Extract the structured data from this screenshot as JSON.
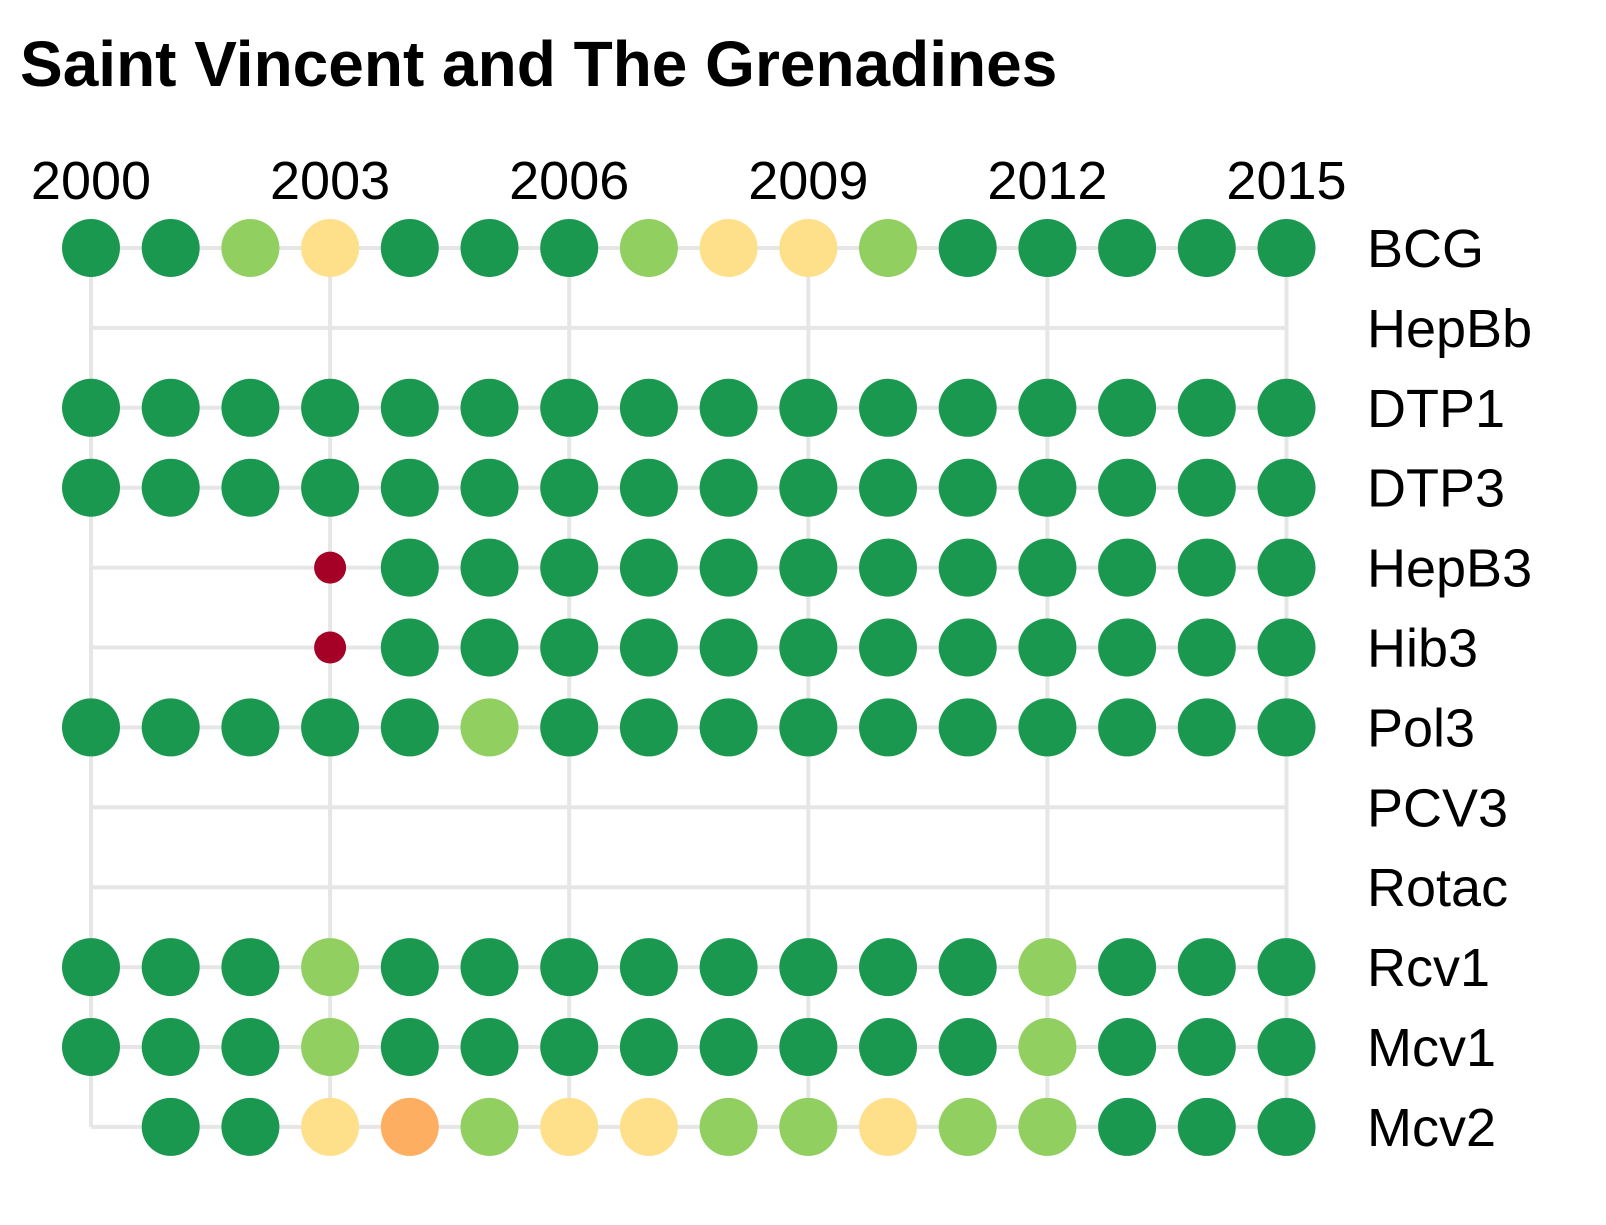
{
  "chart_data": {
    "type": "dot-matrix",
    "title": "Saint Vincent and The Grenadines",
    "x": [
      2000,
      2001,
      2002,
      2003,
      2004,
      2005,
      2006,
      2007,
      2008,
      2009,
      2010,
      2011,
      2012,
      2013,
      2014,
      2015
    ],
    "xticks": [
      "2000",
      "2003",
      "2006",
      "2009",
      "2012",
      "2015"
    ],
    "colors": {
      "dark-green": "#1a9850",
      "light-green": "#91cf60",
      "yellow": "#fee08b",
      "orange": "#fdae61",
      "dark-red": "#a50026"
    },
    "series": [
      {
        "name": "BCG",
        "values": [
          "dark-green",
          "dark-green",
          "light-green",
          "yellow",
          "dark-green",
          "dark-green",
          "dark-green",
          "light-green",
          "yellow",
          "yellow",
          "light-green",
          "dark-green",
          "dark-green",
          "dark-green",
          "dark-green",
          "dark-green"
        ]
      },
      {
        "name": "HepBb",
        "values": [
          null,
          null,
          null,
          null,
          null,
          null,
          null,
          null,
          null,
          null,
          null,
          null,
          null,
          null,
          null,
          null
        ]
      },
      {
        "name": "DTP1",
        "values": [
          "dark-green",
          "dark-green",
          "dark-green",
          "dark-green",
          "dark-green",
          "dark-green",
          "dark-green",
          "dark-green",
          "dark-green",
          "dark-green",
          "dark-green",
          "dark-green",
          "dark-green",
          "dark-green",
          "dark-green",
          "dark-green"
        ]
      },
      {
        "name": "DTP3",
        "values": [
          "dark-green",
          "dark-green",
          "dark-green",
          "dark-green",
          "dark-green",
          "dark-green",
          "dark-green",
          "dark-green",
          "dark-green",
          "dark-green",
          "dark-green",
          "dark-green",
          "dark-green",
          "dark-green",
          "dark-green",
          "dark-green"
        ]
      },
      {
        "name": "HepB3",
        "values": [
          null,
          null,
          null,
          "dark-red-small",
          "dark-green",
          "dark-green",
          "dark-green",
          "dark-green",
          "dark-green",
          "dark-green",
          "dark-green",
          "dark-green",
          "dark-green",
          "dark-green",
          "dark-green",
          "dark-green"
        ]
      },
      {
        "name": "Hib3",
        "values": [
          null,
          null,
          null,
          "dark-red-small",
          "dark-green",
          "dark-green",
          "dark-green",
          "dark-green",
          "dark-green",
          "dark-green",
          "dark-green",
          "dark-green",
          "dark-green",
          "dark-green",
          "dark-green",
          "dark-green"
        ]
      },
      {
        "name": "Pol3",
        "values": [
          "dark-green",
          "dark-green",
          "dark-green",
          "dark-green",
          "dark-green",
          "light-green",
          "dark-green",
          "dark-green",
          "dark-green",
          "dark-green",
          "dark-green",
          "dark-green",
          "dark-green",
          "dark-green",
          "dark-green",
          "dark-green"
        ]
      },
      {
        "name": "PCV3",
        "values": [
          null,
          null,
          null,
          null,
          null,
          null,
          null,
          null,
          null,
          null,
          null,
          null,
          null,
          null,
          null,
          null
        ]
      },
      {
        "name": "Rotac",
        "values": [
          null,
          null,
          null,
          null,
          null,
          null,
          null,
          null,
          null,
          null,
          null,
          null,
          null,
          null,
          null,
          null
        ]
      },
      {
        "name": "Rcv1",
        "values": [
          "dark-green",
          "dark-green",
          "dark-green",
          "light-green",
          "dark-green",
          "dark-green",
          "dark-green",
          "dark-green",
          "dark-green",
          "dark-green",
          "dark-green",
          "dark-green",
          "light-green",
          "dark-green",
          "dark-green",
          "dark-green"
        ]
      },
      {
        "name": "Mcv1",
        "values": [
          "dark-green",
          "dark-green",
          "dark-green",
          "light-green",
          "dark-green",
          "dark-green",
          "dark-green",
          "dark-green",
          "dark-green",
          "dark-green",
          "dark-green",
          "dark-green",
          "light-green",
          "dark-green",
          "dark-green",
          "dark-green"
        ]
      },
      {
        "name": "Mcv2",
        "values": [
          null,
          "dark-green",
          "dark-green",
          "yellow",
          "orange",
          "light-green",
          "yellow",
          "yellow",
          "light-green",
          "light-green",
          "yellow",
          "light-green",
          "light-green",
          "dark-green",
          "dark-green",
          "dark-green"
        ]
      }
    ],
    "grid": true,
    "legend": "none"
  }
}
